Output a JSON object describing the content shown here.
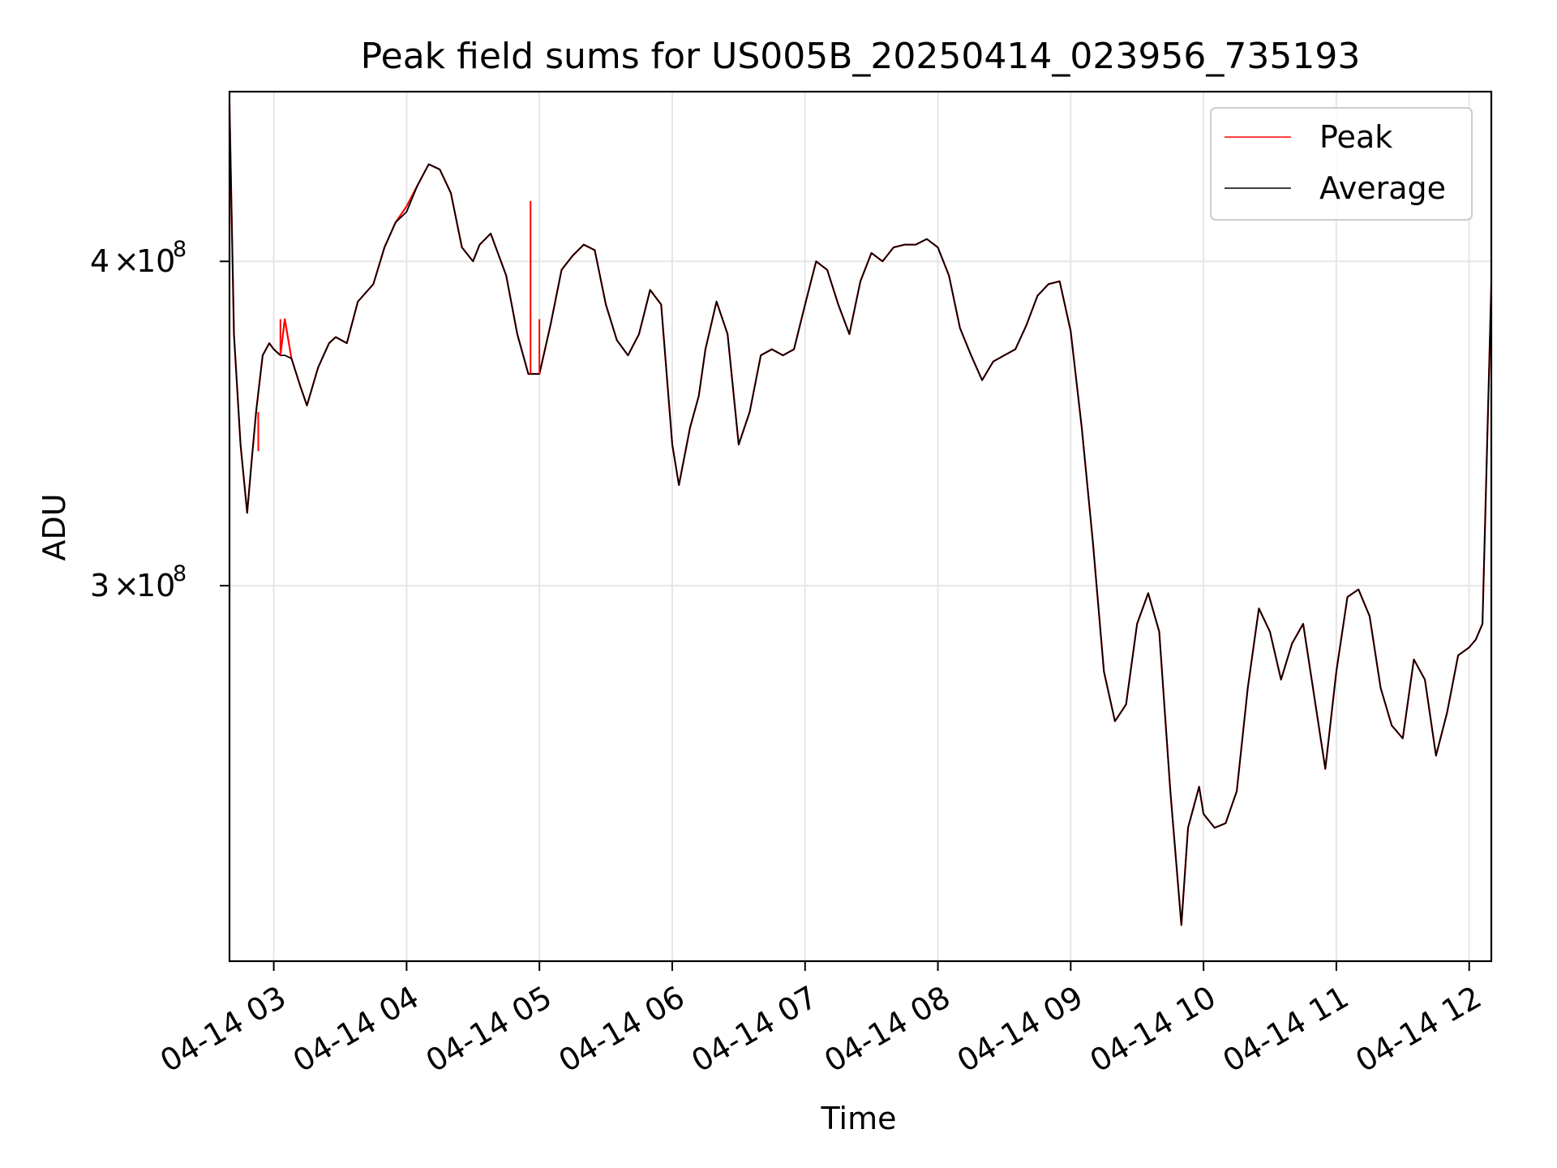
{
  "chart_data": {
    "type": "line",
    "title": "Peak field sums for US005B_20250414_023956_735193",
    "xlabel": "Time",
    "ylabel": "ADU",
    "x_scale": "time",
    "y_scale": "log",
    "xlim": [
      "2025-04-14 02:40",
      "2025-04-14 12:10"
    ],
    "ylim": [
      215000000,
      465000000
    ],
    "x_ticks": [
      {
        "value": "2025-04-14 03:00",
        "label": "04-14 03"
      },
      {
        "value": "2025-04-14 04:00",
        "label": "04-14 04"
      },
      {
        "value": "2025-04-14 05:00",
        "label": "04-14 05"
      },
      {
        "value": "2025-04-14 06:00",
        "label": "04-14 06"
      },
      {
        "value": "2025-04-14 07:00",
        "label": "04-14 07"
      },
      {
        "value": "2025-04-14 08:00",
        "label": "04-14 08"
      },
      {
        "value": "2025-04-14 09:00",
        "label": "04-14 09"
      },
      {
        "value": "2025-04-14 10:00",
        "label": "04-14 10"
      },
      {
        "value": "2025-04-14 11:00",
        "label": "04-14 11"
      },
      {
        "value": "2025-04-14 12:00",
        "label": "04-14 12"
      }
    ],
    "y_ticks": [
      {
        "value": 300000000,
        "mant": "3",
        "exp": "8"
      },
      {
        "value": 400000000,
        "mant": "4",
        "exp": "8"
      }
    ],
    "grid": true,
    "legend": "top-right",
    "x": [
      "2025-04-14 02:40",
      "2025-04-14 02:42",
      "2025-04-14 02:45",
      "2025-04-14 02:48",
      "2025-04-14 02:50",
      "2025-04-14 02:52",
      "2025-04-14 02:55",
      "2025-04-14 02:58",
      "2025-04-14 03:00",
      "2025-04-14 03:03",
      "2025-04-14 03:05",
      "2025-04-14 03:08",
      "2025-04-14 03:12",
      "2025-04-14 03:15",
      "2025-04-14 03:20",
      "2025-04-14 03:25",
      "2025-04-14 03:28",
      "2025-04-14 03:33",
      "2025-04-14 03:38",
      "2025-04-14 03:45",
      "2025-04-14 03:50",
      "2025-04-14 03:55",
      "2025-04-14 04:00",
      "2025-04-14 04:05",
      "2025-04-14 04:10",
      "2025-04-14 04:15",
      "2025-04-14 04:20",
      "2025-04-14 04:25",
      "2025-04-14 04:30",
      "2025-04-14 04:33",
      "2025-04-14 04:38",
      "2025-04-14 04:45",
      "2025-04-14 04:50",
      "2025-04-14 04:55",
      "2025-04-14 05:00",
      "2025-04-14 05:05",
      "2025-04-14 05:10",
      "2025-04-14 05:15",
      "2025-04-14 05:20",
      "2025-04-14 05:25",
      "2025-04-14 05:30",
      "2025-04-14 05:35",
      "2025-04-14 05:40",
      "2025-04-14 05:45",
      "2025-04-14 05:50",
      "2025-04-14 05:55",
      "2025-04-14 06:00",
      "2025-04-14 06:03",
      "2025-04-14 06:08",
      "2025-04-14 06:12",
      "2025-04-14 06:15",
      "2025-04-14 06:20",
      "2025-04-14 06:25",
      "2025-04-14 06:30",
      "2025-04-14 06:35",
      "2025-04-14 06:40",
      "2025-04-14 06:45",
      "2025-04-14 06:50",
      "2025-04-14 06:55",
      "2025-04-14 07:00",
      "2025-04-14 07:05",
      "2025-04-14 07:10",
      "2025-04-14 07:15",
      "2025-04-14 07:20",
      "2025-04-14 07:25",
      "2025-04-14 07:30",
      "2025-04-14 07:35",
      "2025-04-14 07:40",
      "2025-04-14 07:45",
      "2025-04-14 07:50",
      "2025-04-14 07:55",
      "2025-04-14 08:00",
      "2025-04-14 08:05",
      "2025-04-14 08:10",
      "2025-04-14 08:15",
      "2025-04-14 08:20",
      "2025-04-14 08:25",
      "2025-04-14 08:30",
      "2025-04-14 08:35",
      "2025-04-14 08:40",
      "2025-04-14 08:45",
      "2025-04-14 08:50",
      "2025-04-14 08:55",
      "2025-04-14 09:00",
      "2025-04-14 09:05",
      "2025-04-14 09:10",
      "2025-04-14 09:15",
      "2025-04-14 09:20",
      "2025-04-14 09:25",
      "2025-04-14 09:30",
      "2025-04-14 09:35",
      "2025-04-14 09:40",
      "2025-04-14 09:45",
      "2025-04-14 09:50",
      "2025-04-14 09:53",
      "2025-04-14 09:58",
      "2025-04-14 10:00",
      "2025-04-14 10:05",
      "2025-04-14 10:10",
      "2025-04-14 10:15",
      "2025-04-14 10:20",
      "2025-04-14 10:25",
      "2025-04-14 10:30",
      "2025-04-14 10:35",
      "2025-04-14 10:40",
      "2025-04-14 10:45",
      "2025-04-14 10:50",
      "2025-04-14 10:55",
      "2025-04-14 11:00",
      "2025-04-14 11:05",
      "2025-04-14 11:10",
      "2025-04-14 11:15",
      "2025-04-14 11:20",
      "2025-04-14 11:25",
      "2025-04-14 11:30",
      "2025-04-14 11:35",
      "2025-04-14 11:40",
      "2025-04-14 11:45",
      "2025-04-14 11:50",
      "2025-04-14 11:55",
      "2025-04-14 12:00",
      "2025-04-14 12:03",
      "2025-04-14 12:06",
      "2025-04-14 12:10"
    ],
    "series": [
      {
        "name": "Peak",
        "color": "#ff0000",
        "values": [
          460000000,
          375000000,
          340000000,
          320000000,
          335000000,
          350000000,
          368000000,
          372000000,
          370000000,
          368000000,
          380000000,
          367000000,
          358000000,
          352000000,
          364000000,
          372000000,
          374000000,
          372000000,
          386000000,
          392000000,
          405000000,
          414000000,
          420000000,
          428000000,
          436000000,
          434000000,
          425000000,
          405000000,
          400000000,
          406000000,
          410000000,
          395000000,
          375000000,
          362000000,
          362000000,
          378000000,
          397000000,
          402000000,
          406000000,
          404000000,
          385000000,
          373000000,
          368000000,
          375000000,
          390000000,
          385000000,
          340000000,
          328000000,
          345000000,
          355000000,
          370000000,
          386000000,
          375000000,
          340000000,
          350000000,
          368000000,
          370000000,
          368000000,
          370000000,
          385000000,
          400000000,
          397000000,
          385000000,
          375000000,
          393000000,
          403000000,
          400000000,
          405000000,
          406000000,
          406000000,
          408000000,
          405000000,
          395000000,
          377000000,
          368000000,
          360000000,
          366000000,
          368000000,
          370000000,
          378000000,
          388000000,
          392000000,
          393000000,
          376000000,
          345000000,
          312000000,
          278000000,
          266000000,
          270000000,
          290000000,
          298000000,
          288000000,
          250000000,
          222000000,
          242000000,
          251000000,
          245000000,
          242000000,
          243000000,
          250000000,
          274000000,
          294000000,
          288000000,
          276000000,
          285000000,
          290000000,
          272000000,
          255000000,
          278000000,
          297000000,
          299000000,
          292000000,
          274000000,
          265000000,
          262000000,
          281000000,
          276000000,
          258000000,
          268000000,
          282000000,
          284000000,
          286000000,
          290000000,
          392000000
        ]
      },
      {
        "name": "Average",
        "color": "#000000",
        "values": [
          460000000,
          375000000,
          340000000,
          320000000,
          335000000,
          350000000,
          368000000,
          372000000,
          370000000,
          368000000,
          368000000,
          367000000,
          358000000,
          352000000,
          364000000,
          372000000,
          374000000,
          372000000,
          386000000,
          392000000,
          405000000,
          414000000,
          418000000,
          428000000,
          436000000,
          434000000,
          425000000,
          405000000,
          400000000,
          406000000,
          410000000,
          395000000,
          375000000,
          362000000,
          362000000,
          378000000,
          397000000,
          402000000,
          406000000,
          404000000,
          385000000,
          373000000,
          368000000,
          375000000,
          390000000,
          385000000,
          340000000,
          328000000,
          345000000,
          355000000,
          370000000,
          386000000,
          375000000,
          340000000,
          350000000,
          368000000,
          370000000,
          368000000,
          370000000,
          385000000,
          400000000,
          397000000,
          385000000,
          375000000,
          393000000,
          403000000,
          400000000,
          405000000,
          406000000,
          406000000,
          408000000,
          405000000,
          395000000,
          377000000,
          368000000,
          360000000,
          366000000,
          368000000,
          370000000,
          378000000,
          388000000,
          392000000,
          393000000,
          376000000,
          345000000,
          312000000,
          278000000,
          266000000,
          270000000,
          290000000,
          298000000,
          288000000,
          250000000,
          222000000,
          242000000,
          251000000,
          245000000,
          242000000,
          243000000,
          250000000,
          274000000,
          294000000,
          288000000,
          276000000,
          285000000,
          290000000,
          272000000,
          255000000,
          278000000,
          297000000,
          299000000,
          292000000,
          274000000,
          265000000,
          262000000,
          281000000,
          276000000,
          258000000,
          268000000,
          282000000,
          284000000,
          286000000,
          290000000,
          392000000
        ]
      }
    ],
    "spikes": [
      {
        "series": "Peak",
        "x": "2025-04-14 04:56",
        "base": 362000000,
        "value": 422000000
      },
      {
        "series": "Peak",
        "x": "2025-04-14 05:00",
        "base": 362000000,
        "value": 380000000
      },
      {
        "series": "Peak",
        "x": "2025-04-14 03:03",
        "base": 368000000,
        "value": 380000000
      },
      {
        "series": "Peak",
        "x": "2025-04-14 02:53",
        "base": 338000000,
        "value": 350000000
      }
    ]
  }
}
